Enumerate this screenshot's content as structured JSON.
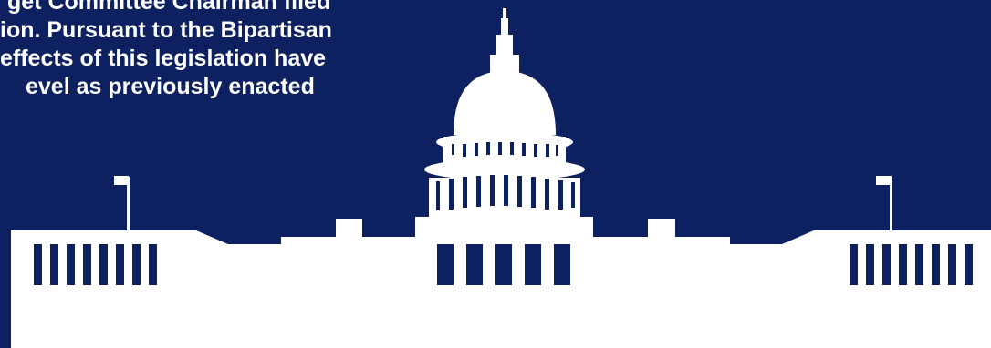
{
  "notice": {
    "lines": [
      "get Committee Chairman filed",
      "ion.  Pursuant to the Bipartisan",
      "effects of this legislation have",
      "evel as previously enacted"
    ]
  },
  "colors": {
    "background": "#0d2160",
    "silhouette": "#ffffff"
  },
  "illustration": {
    "icon": "us-capitol-building-silhouette"
  }
}
